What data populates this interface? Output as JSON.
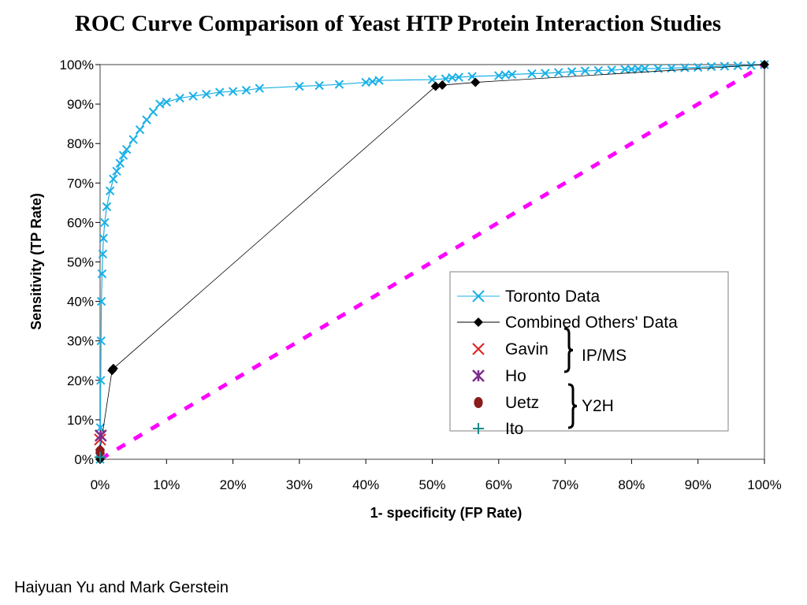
{
  "slide": {
    "title": "ROC Curve Comparison of Yeast HTP  Protein Interaction Studies",
    "author": "Haiyuan Yu and Mark Gerstein"
  },
  "chart_data": {
    "type": "scatter",
    "xlabel": "1- specificity (FP Rate)",
    "ylabel": "Sensitivity (TP Rate)",
    "xlim": [
      0,
      100
    ],
    "ylim": [
      0,
      100
    ],
    "x_ticks": [
      "0%",
      "10%",
      "20%",
      "30%",
      "40%",
      "50%",
      "60%",
      "70%",
      "80%",
      "90%",
      "100%"
    ],
    "y_ticks": [
      "0%",
      "10%",
      "20%",
      "30%",
      "40%",
      "50%",
      "60%",
      "70%",
      "80%",
      "90%",
      "100%"
    ],
    "grid": false,
    "legend_position": "inside-lower-right",
    "series": [
      {
        "name": "Toronto Data",
        "marker": "x",
        "color": "#1AB0E6",
        "line": true,
        "x": [
          0,
          0.05,
          0.1,
          0.15,
          0.2,
          0.3,
          0.4,
          0.5,
          0.7,
          1,
          1.5,
          2,
          2.5,
          3,
          3.5,
          4,
          5,
          6,
          7,
          8,
          9,
          10,
          12,
          14,
          16,
          18,
          20,
          22,
          24,
          30,
          33,
          36,
          40,
          41,
          42,
          50,
          52,
          53,
          54,
          56,
          60,
          61,
          62,
          65,
          67,
          69,
          71,
          73,
          75,
          77,
          79,
          80,
          81,
          82,
          84,
          86,
          88,
          90,
          92,
          94,
          96,
          98,
          100
        ],
        "y": [
          0,
          8,
          20,
          30,
          40,
          47,
          52,
          56,
          60,
          64,
          68,
          71,
          73,
          75,
          77,
          78.5,
          81,
          83.5,
          86,
          88,
          90,
          90.5,
          91.5,
          92,
          92.5,
          93,
          93.2,
          93.5,
          94,
          94.5,
          94.7,
          95,
          95.5,
          95.7,
          96,
          96.2,
          96.4,
          96.7,
          96.8,
          97,
          97.2,
          97.4,
          97.5,
          97.7,
          97.8,
          98,
          98.2,
          98.4,
          98.5,
          98.6,
          98.8,
          98.8,
          98.9,
          99,
          99,
          99.1,
          99.2,
          99.3,
          99.5,
          99.6,
          99.7,
          99.8,
          100
        ]
      },
      {
        "name": "Combined Others' Data",
        "marker": "diamond",
        "color": "#000000",
        "line": true,
        "x": [
          0,
          0,
          0,
          1.8,
          2.0,
          50.5,
          51.5,
          56.5,
          100
        ],
        "y": [
          0,
          1.5,
          2.5,
          22.5,
          23,
          94.5,
          94.8,
          95.5,
          100
        ]
      },
      {
        "name": "Gavin",
        "marker": "x",
        "color": "#E02020",
        "line": false,
        "x": [
          0
        ],
        "y": [
          5
        ]
      },
      {
        "name": "Ho",
        "marker": "star",
        "color": "#7B2D8E",
        "line": false,
        "x": [
          0.1
        ],
        "y": [
          6
        ]
      },
      {
        "name": "Uetz",
        "marker": "circle",
        "color": "#8B1A1A",
        "line": false,
        "x": [
          0
        ],
        "y": [
          2
        ]
      },
      {
        "name": "Ito",
        "marker": "plus",
        "color": "#1A8A8A",
        "line": false,
        "x": [
          0
        ],
        "y": [
          0.5
        ]
      }
    ],
    "random_reference_line": {
      "x": [
        0,
        100
      ],
      "y": [
        0,
        100
      ],
      "color": "#FF00FF",
      "style": "dashed"
    },
    "legend_groups": [
      {
        "label": "IP/MS",
        "members": [
          "Gavin",
          "Ho"
        ]
      },
      {
        "label": "Y2H",
        "members": [
          "Uetz",
          "Ito"
        ]
      }
    ]
  }
}
